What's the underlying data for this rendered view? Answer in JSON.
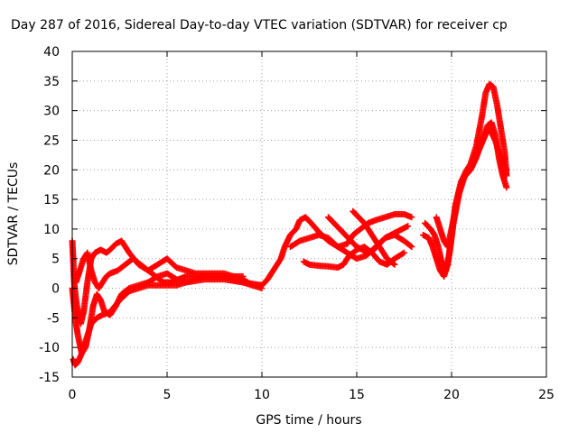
{
  "chart_data": {
    "type": "scatter",
    "title": "Day 287 of 2016, Sidereal Day-to-day VTEC variation (SDTVAR) for receiver cp",
    "xlabel": "GPS time / hours",
    "ylabel": "SDTVAR / TECUs",
    "xlim": [
      0,
      25
    ],
    "ylim": [
      -15,
      40
    ],
    "xticks": [
      0,
      5,
      10,
      15,
      20,
      25
    ],
    "yticks": [
      -15,
      -10,
      -5,
      0,
      5,
      10,
      15,
      20,
      25,
      30,
      35,
      40
    ],
    "grid": true,
    "marker": "plus",
    "color": "#ff0000",
    "series": [
      {
        "x": [
          0,
          0.05,
          0.1,
          0.2,
          0.3,
          0.45,
          0.6,
          0.8,
          1.0,
          1.2,
          1.5,
          1.8,
          2.0,
          2.3,
          2.6,
          3.0,
          3.5,
          4.0,
          4.5,
          5.0,
          5.5,
          6.0,
          6.5,
          7.0,
          7.5,
          8.0,
          8.5,
          9.0,
          9.5,
          10.0,
          10.3,
          10.6,
          11.0
        ],
        "y": [
          8,
          5,
          1,
          -2,
          -4,
          -6,
          -4,
          1,
          5,
          6,
          6.5,
          6,
          6.5,
          7.5,
          8,
          6,
          4,
          3,
          4,
          5,
          3.5,
          3,
          2.5,
          2.5,
          2.5,
          2.5,
          2,
          1.5,
          0.5,
          0.5,
          1.5,
          3,
          5
        ]
      },
      {
        "x": [
          0,
          0.1,
          0.2,
          0.3,
          0.5,
          0.7,
          0.9,
          1.1,
          1.3,
          1.5,
          1.7,
          2.0,
          2.3,
          2.6,
          3.0,
          3.5,
          4.0,
          4.5,
          5.0,
          5.5,
          6.0,
          6.5,
          7.0,
          7.5,
          8.0,
          8.5,
          9.0,
          9.5,
          10.0
        ],
        "y": [
          0,
          -3,
          -6,
          -8,
          -11,
          -10,
          -7,
          -3,
          -1,
          -2,
          -4,
          -4.5,
          -3,
          -1,
          0,
          0.5,
          1,
          2,
          2.5,
          1.5,
          1,
          1.5,
          2,
          2,
          2,
          1.5,
          1,
          0.5,
          0
        ]
      },
      {
        "x": [
          0.05,
          0.15,
          0.3,
          0.5,
          0.7,
          1.0,
          1.3,
          1.6,
          2.0,
          2.5,
          3.0,
          3.5,
          4.0,
          4.5,
          5.0,
          5.5,
          6.0,
          7.0,
          8.0,
          9.0,
          10.0
        ],
        "y": [
          -12,
          -13,
          -12.5,
          -11,
          -9,
          -6,
          -5,
          -4.5,
          -4,
          -2,
          -0.5,
          0,
          0.5,
          0.5,
          0.5,
          0.5,
          1,
          1.5,
          1.5,
          1,
          0.5
        ]
      },
      {
        "x": [
          0.2,
          0.4,
          0.6,
          0.8,
          1.0,
          1.2,
          1.4,
          1.6,
          1.8,
          2.0,
          2.4,
          2.8,
          3.2,
          3.6,
          4.0,
          4.4,
          4.8,
          5.2,
          5.6,
          6.0,
          7.0,
          8.0,
          9.0
        ],
        "y": [
          1,
          3,
          5,
          6,
          3,
          1,
          0,
          1,
          2,
          2.5,
          3,
          4,
          5,
          4,
          3,
          2,
          1,
          1,
          1.5,
          2,
          2,
          2,
          2
        ]
      },
      {
        "x": [
          11.0,
          11.2,
          11.5,
          11.8,
          12.0,
          12.3,
          12.6,
          13.0,
          13.5,
          14.0,
          14.5,
          14.8,
          15.2,
          15.6,
          16.0,
          16.5,
          17.0,
          17.5,
          17.9
        ],
        "y": [
          5,
          7,
          9,
          10,
          11.5,
          12,
          11,
          9.5,
          8,
          7,
          7.5,
          9,
          10,
          11,
          11.5,
          12,
          12.5,
          12.5,
          12
        ]
      },
      {
        "x": [
          11.5,
          12.0,
          12.5,
          13.0,
          13.5,
          14.0,
          14.5,
          15.0,
          15.5,
          16.0,
          16.5,
          17.0,
          17.5,
          17.9
        ],
        "y": [
          7,
          8,
          8.5,
          9,
          8.5,
          7,
          6,
          5,
          5.5,
          7,
          8.5,
          9,
          8,
          7
        ]
      },
      {
        "x": [
          12.2,
          12.5,
          13.0,
          13.5,
          14.0,
          14.3,
          14.6,
          15.0,
          15.4,
          15.8,
          16.2,
          16.6,
          17.0,
          17.5
        ],
        "y": [
          4.5,
          4,
          3.8,
          3.7,
          3.5,
          4,
          5.5,
          6.5,
          7,
          6,
          4.5,
          4,
          5,
          6
        ]
      },
      {
        "x": [
          13.5,
          13.8,
          14.1,
          14.4,
          14.7,
          15.0,
          15.3,
          15.6,
          15.9,
          16.2,
          16.5,
          16.8,
          17.1,
          17.4,
          17.7
        ],
        "y": [
          12,
          11,
          10,
          9,
          8,
          7,
          6.5,
          6,
          6.5,
          7.5,
          8.5,
          9,
          9.5,
          10,
          10.5
        ]
      },
      {
        "x": [
          14.8,
          15.1,
          15.4,
          15.7,
          16.0,
          16.3,
          16.6,
          17.0
        ],
        "y": [
          13,
          12,
          11,
          9.5,
          8,
          6.5,
          5,
          4
        ]
      },
      {
        "x": [
          18.5,
          18.8,
          19.0,
          19.2,
          19.4,
          19.6,
          19.8,
          20.0,
          20.2,
          20.5,
          20.8,
          21.0,
          21.3,
          21.6,
          21.8,
          22.0,
          22.2,
          22.4,
          22.6,
          22.8,
          22.9
        ],
        "y": [
          9,
          8.5,
          7,
          5,
          3,
          2,
          4,
          9,
          14,
          18,
          20,
          21,
          24,
          29,
          33,
          34.5,
          34,
          31,
          27,
          23,
          19
        ]
      },
      {
        "x": [
          18.6,
          18.9,
          19.1,
          19.3,
          19.5,
          19.7,
          19.9,
          20.1,
          20.4,
          20.7,
          21.0,
          21.3,
          21.6,
          21.9,
          22.1,
          22.3,
          22.5,
          22.7,
          22.9
        ],
        "y": [
          11,
          10,
          9,
          7,
          4,
          3,
          6,
          11,
          16,
          19,
          20,
          22,
          25,
          27.5,
          28,
          26,
          22,
          19,
          17
        ]
      },
      {
        "x": [
          19.2,
          19.4,
          19.6,
          19.8,
          20.0,
          20.3,
          20.6,
          21.0,
          21.4,
          21.8,
          22.0,
          22.3,
          22.6,
          22.9
        ],
        "y": [
          12,
          10,
          8,
          7,
          10,
          15,
          18.5,
          20,
          23,
          26,
          27,
          25,
          22,
          20
        ]
      }
    ]
  }
}
